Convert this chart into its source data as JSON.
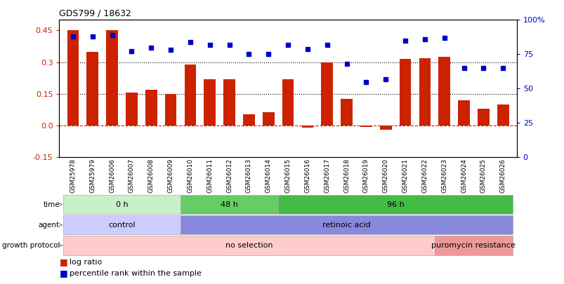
{
  "title": "GDS799 / 18632",
  "samples": [
    "GSM25978",
    "GSM25979",
    "GSM26006",
    "GSM26007",
    "GSM26008",
    "GSM26009",
    "GSM26010",
    "GSM26011",
    "GSM26012",
    "GSM26013",
    "GSM26014",
    "GSM26015",
    "GSM26016",
    "GSM26017",
    "GSM26018",
    "GSM26019",
    "GSM26020",
    "GSM26021",
    "GSM26022",
    "GSM26023",
    "GSM26024",
    "GSM26025",
    "GSM26026"
  ],
  "log_ratio": [
    0.45,
    0.35,
    0.45,
    0.155,
    0.17,
    0.15,
    0.29,
    0.22,
    0.22,
    0.055,
    0.065,
    0.22,
    -0.01,
    0.3,
    0.125,
    -0.005,
    -0.02,
    0.315,
    0.32,
    0.325,
    0.12,
    0.08,
    0.1
  ],
  "percentile": [
    88,
    88,
    89,
    77,
    80,
    78,
    84,
    82,
    82,
    75,
    75,
    82,
    79,
    82,
    68,
    55,
    57,
    85,
    86,
    87,
    65,
    65,
    65
  ],
  "time_groups": [
    {
      "label": "0 h",
      "start": 0,
      "end": 6,
      "color": "#c8f0c8"
    },
    {
      "label": "48 h",
      "start": 6,
      "end": 11,
      "color": "#66cc66"
    },
    {
      "label": "96 h",
      "start": 11,
      "end": 23,
      "color": "#44bb44"
    }
  ],
  "agent_groups": [
    {
      "label": "control",
      "start": 0,
      "end": 6,
      "color": "#ccccff"
    },
    {
      "label": "retinoic acid",
      "start": 6,
      "end": 23,
      "color": "#8888dd"
    }
  ],
  "growth_groups": [
    {
      "label": "no selection",
      "start": 0,
      "end": 19,
      "color": "#ffcccc"
    },
    {
      "label": "puromycin resistance",
      "start": 19,
      "end": 23,
      "color": "#ee9999"
    }
  ],
  "bar_color": "#cc2200",
  "dot_color": "#0000cc",
  "left_ylim": [
    -0.15,
    0.5
  ],
  "right_ylim": [
    0,
    100
  ],
  "left_yticks": [
    -0.15,
    0.0,
    0.15,
    0.3,
    0.45
  ],
  "right_yticks": [
    0,
    25,
    50,
    75,
    100
  ],
  "right_yticklabels": [
    "0",
    "25",
    "50",
    "75",
    "100%"
  ],
  "hline_values": [
    0.15,
    0.3
  ],
  "zero_line": 0.0,
  "background_color": "#ffffff"
}
